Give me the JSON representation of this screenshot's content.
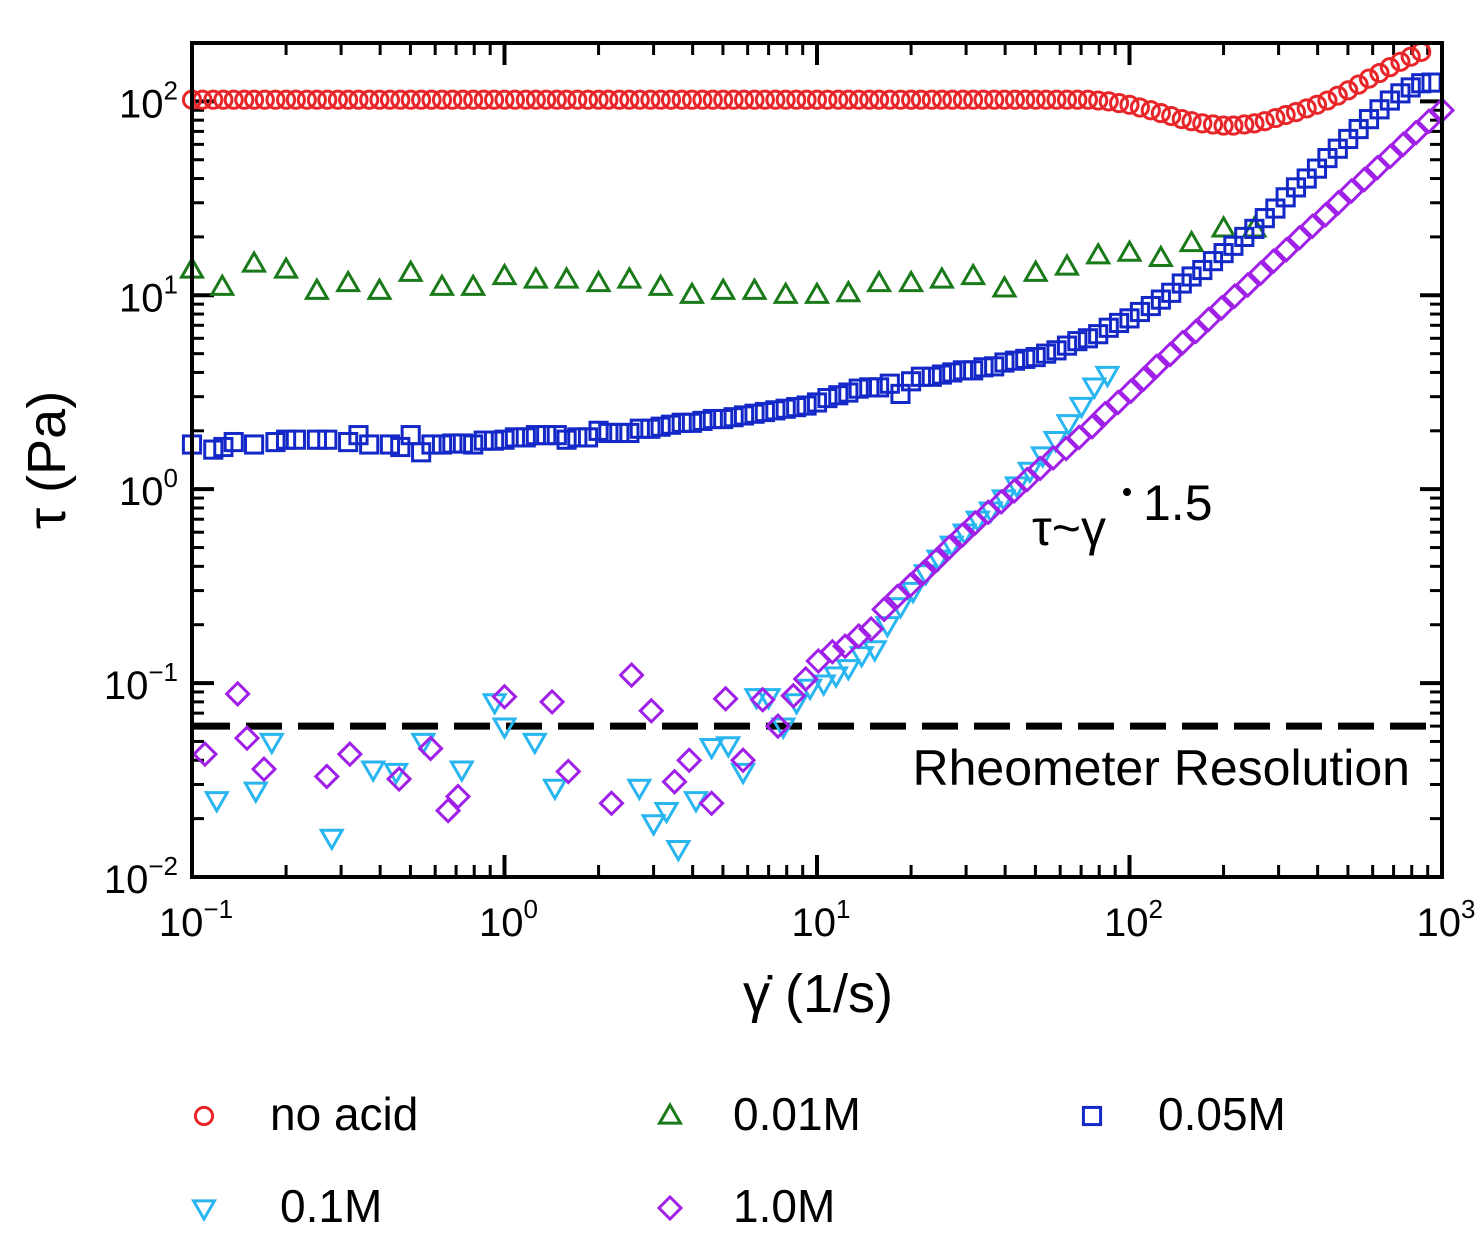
{
  "chart_data": {
    "type": "scatter",
    "xscale": "log",
    "yscale": "log",
    "xlim": [
      0.1,
      1000
    ],
    "ylim": [
      0.01,
      200
    ],
    "xlabel": "γ̇ (1/s)",
    "ylabel": "τ (Pa)",
    "x_ticks": [
      {
        "base": "10",
        "exp": "−1"
      },
      {
        "base": "10",
        "exp": "0"
      },
      {
        "base": "10",
        "exp": "1"
      },
      {
        "base": "10",
        "exp": "2"
      },
      {
        "base": "10",
        "exp": "3"
      }
    ],
    "y_ticks": [
      {
        "base": "10",
        "exp": "−2"
      },
      {
        "base": "10",
        "exp": "−1"
      },
      {
        "base": "10",
        "exp": "0"
      },
      {
        "base": "10",
        "exp": "1"
      },
      {
        "base": "10",
        "exp": "2"
      }
    ],
    "annotations": {
      "reference_line_label": "Rheometer Resolution",
      "reference_line_value": 0.06,
      "power_law_prefix": "τ~γ",
      "power_law_exponent": "1.5"
    },
    "series": [
      {
        "name": "no acid",
        "marker": "circle",
        "color": "#e8262a",
        "x": [
          0.1,
          0.108,
          0.117,
          0.126,
          0.136,
          0.147,
          0.158,
          0.171,
          0.185,
          0.2,
          0.215,
          0.233,
          0.251,
          0.271,
          0.293,
          0.316,
          0.341,
          0.369,
          0.398,
          0.43,
          0.464,
          0.501,
          0.541,
          0.584,
          0.631,
          0.681,
          0.736,
          0.794,
          0.858,
          0.926,
          1,
          1.08,
          1.17,
          1.26,
          1.36,
          1.47,
          1.58,
          1.71,
          1.85,
          2,
          2.15,
          2.33,
          2.51,
          2.71,
          2.93,
          3.16,
          3.41,
          3.69,
          3.98,
          4.3,
          4.64,
          5.01,
          5.41,
          5.84,
          6.31,
          6.81,
          7.36,
          7.94,
          8.58,
          9.26,
          10,
          10.8,
          11.7,
          12.6,
          13.6,
          14.7,
          15.8,
          17.1,
          18.5,
          20,
          21.5,
          23.3,
          25.1,
          27.1,
          29.3,
          31.6,
          34.1,
          36.9,
          39.8,
          43,
          46.4,
          50.1,
          54.1,
          58.4,
          63.1,
          68.1,
          73.6,
          79.4,
          85.8,
          92.6,
          100,
          108,
          117,
          126,
          136,
          147,
          158,
          171,
          185,
          200,
          215,
          233,
          251,
          271,
          293,
          316,
          341,
          369,
          398,
          430,
          464,
          501,
          541,
          584,
          631,
          681,
          736,
          794,
          858
        ],
        "y": [
          102,
          102,
          102,
          102,
          102,
          102,
          102,
          102,
          102,
          102,
          102,
          102,
          102,
          102,
          102,
          102,
          102,
          102,
          102,
          102,
          102,
          102,
          102,
          102,
          102,
          102,
          102,
          102,
          102,
          102,
          102,
          102,
          102,
          102,
          102,
          102,
          102,
          102,
          102,
          102,
          102,
          102,
          102,
          102,
          102,
          102,
          102,
          102,
          102,
          102,
          102,
          102,
          102,
          102,
          102,
          102,
          102,
          102,
          102,
          102,
          102,
          102,
          102,
          102,
          102,
          102,
          102,
          102,
          102,
          102,
          102,
          102,
          102,
          102,
          102,
          102,
          102,
          102,
          102,
          102,
          102,
          102,
          102,
          102,
          102,
          102,
          102,
          101,
          100,
          98,
          96,
          93,
          90,
          87,
          84,
          81,
          79,
          77,
          76,
          75,
          75,
          76,
          77,
          79,
          82,
          85,
          88,
          92,
          96,
          101,
          107,
          114,
          122,
          131,
          140,
          150,
          160,
          170,
          180
        ]
      },
      {
        "name": "0.01M",
        "marker": "triangle-up",
        "color": "#1a7a1a",
        "x": [
          0.1,
          0.125,
          0.158,
          0.2,
          0.251,
          0.316,
          0.398,
          0.501,
          0.631,
          0.794,
          1,
          1.26,
          1.58,
          2,
          2.51,
          3.16,
          3.98,
          5.01,
          6.31,
          7.94,
          10,
          12.6,
          15.8,
          20,
          25.1,
          31.6,
          39.8,
          50.1,
          63.1,
          79.4,
          100,
          126,
          158,
          200,
          251
        ],
        "y": [
          13.5,
          11,
          14.5,
          13.5,
          10.5,
          11.5,
          10.5,
          13,
          11,
          11,
          12.5,
          12,
          12,
          11.5,
          12,
          11,
          10,
          10.5,
          10.5,
          10,
          10,
          10.2,
          11.5,
          11.5,
          12,
          12.5,
          10.8,
          13,
          14,
          16,
          16.5,
          15.5,
          18.5,
          22,
          22
        ]
      },
      {
        "name": "0.05M",
        "marker": "square",
        "color": "#1428c8",
        "x": [
          0.1,
          0.117,
          0.126,
          0.136,
          0.158,
          0.185,
          0.2,
          0.215,
          0.251,
          0.271,
          0.316,
          0.341,
          0.369,
          0.43,
          0.464,
          0.501,
          0.541,
          0.584,
          0.631,
          0.681,
          0.736,
          0.794,
          0.858,
          0.926,
          1,
          1.08,
          1.17,
          1.26,
          1.36,
          1.47,
          1.58,
          1.71,
          1.85,
          2,
          2.15,
          2.33,
          2.51,
          2.71,
          2.93,
          3.16,
          3.41,
          3.69,
          3.98,
          4.3,
          4.64,
          5.01,
          5.41,
          5.84,
          6.31,
          6.81,
          7.36,
          7.94,
          8.58,
          9.26,
          10,
          10.8,
          11.7,
          12.6,
          13.6,
          14.7,
          15.8,
          17.1,
          18.5,
          20,
          21.5,
          23.3,
          25.1,
          27.1,
          29.3,
          31.6,
          34.1,
          36.9,
          39.8,
          43,
          46.4,
          50.1,
          54.1,
          58.4,
          63.1,
          68.1,
          73.6,
          79.4,
          85.8,
          92.6,
          100,
          108,
          117,
          126,
          136,
          147,
          158,
          171,
          185,
          200,
          215,
          233,
          251,
          271,
          293,
          316,
          341,
          369,
          398,
          430,
          464,
          501,
          541,
          584,
          631,
          681,
          736,
          794,
          858,
          926
        ],
        "y": [
          1.7,
          1.6,
          1.65,
          1.75,
          1.7,
          1.75,
          1.8,
          1.8,
          1.8,
          1.8,
          1.75,
          1.9,
          1.7,
          1.7,
          1.65,
          1.9,
          1.55,
          1.7,
          1.7,
          1.72,
          1.72,
          1.7,
          1.78,
          1.78,
          1.8,
          1.85,
          1.85,
          1.9,
          1.9,
          1.9,
          1.8,
          1.85,
          1.85,
          2,
          1.95,
          1.95,
          1.95,
          2.05,
          2.05,
          2.1,
          2.15,
          2.2,
          2.2,
          2.25,
          2.3,
          2.3,
          2.35,
          2.4,
          2.45,
          2.5,
          2.55,
          2.6,
          2.65,
          2.7,
          2.8,
          2.95,
          3.05,
          3.15,
          3.3,
          3.35,
          3.35,
          3.5,
          3.1,
          3.6,
          3.8,
          3.8,
          3.9,
          4,
          4.1,
          4.1,
          4.25,
          4.3,
          4.5,
          4.6,
          4.7,
          4.8,
          5,
          5.2,
          5.5,
          5.8,
          6,
          6.3,
          6.8,
          7.2,
          7.6,
          8.2,
          8.8,
          9.5,
          10.3,
          11.5,
          12.5,
          13.5,
          15,
          16.5,
          18,
          20,
          22,
          25,
          28,
          32,
          36,
          40,
          45,
          51,
          57,
          64,
          72,
          81,
          91,
          101,
          110,
          118,
          124,
          125
        ]
      },
      {
        "name": "0.1M",
        "marker": "triangle-down",
        "color": "#29b6f0",
        "x": [
          0.12,
          0.16,
          0.18,
          0.28,
          0.38,
          0.45,
          0.55,
          0.73,
          0.93,
          1,
          1.25,
          1.45,
          2.7,
          3,
          3.3,
          3.6,
          4.1,
          4.6,
          5.2,
          5.8,
          6.4,
          7,
          7.8,
          8.6,
          9.5,
          10.5,
          11.5,
          12.6,
          13.9,
          15.3,
          16.8,
          18.5,
          20.3,
          22.3,
          24.5,
          27,
          29.7,
          32.7,
          36,
          39.6,
          43.6,
          48,
          52.8,
          58,
          63.8,
          70.2,
          77.2,
          85
        ],
        "y": [
          0.025,
          0.028,
          0.05,
          0.016,
          0.036,
          0.035,
          0.05,
          0.036,
          0.08,
          0.06,
          0.05,
          0.029,
          0.029,
          0.019,
          0.022,
          0.014,
          0.025,
          0.047,
          0.048,
          0.035,
          0.085,
          0.085,
          0.06,
          0.08,
          0.095,
          0.1,
          0.11,
          0.12,
          0.14,
          0.15,
          0.2,
          0.25,
          0.3,
          0.37,
          0.44,
          0.52,
          0.6,
          0.7,
          0.78,
          0.9,
          1.05,
          1.25,
          1.5,
          1.8,
          2.2,
          2.7,
          3.4,
          3.9
        ]
      },
      {
        "name": "1.0M",
        "marker": "diamond",
        "color": "#a020e8",
        "x": [
          0.11,
          0.14,
          0.15,
          0.17,
          0.27,
          0.32,
          0.46,
          0.58,
          0.66,
          0.71,
          1,
          1.42,
          1.6,
          2.2,
          2.55,
          2.95,
          3.5,
          3.9,
          4.6,
          5.1,
          5.8,
          6.7,
          7.5,
          8.4,
          9.2,
          10.1,
          11.2,
          12.3,
          13.6,
          14.9,
          16.4,
          18.1,
          19.9,
          21.9,
          24.1,
          26.5,
          29.2,
          32.1,
          35.3,
          38.9,
          42.8,
          47,
          51.8,
          57,
          62.7,
          69,
          75.9,
          83.5,
          91.9,
          101,
          111,
          122,
          135,
          148,
          163,
          179,
          197,
          217,
          239,
          263,
          289,
          318,
          350,
          385,
          424,
          466,
          513,
          564,
          621,
          683,
          751,
          826,
          908,
          1000
        ],
        "y": [
          0.043,
          0.088,
          0.052,
          0.036,
          0.033,
          0.043,
          0.032,
          0.046,
          0.022,
          0.026,
          0.085,
          0.08,
          0.035,
          0.024,
          0.11,
          0.072,
          0.031,
          0.04,
          0.024,
          0.083,
          0.04,
          0.082,
          0.06,
          0.086,
          0.105,
          0.13,
          0.145,
          0.155,
          0.175,
          0.19,
          0.24,
          0.28,
          0.32,
          0.37,
          0.43,
          0.5,
          0.58,
          0.67,
          0.76,
          0.86,
          0.98,
          1.12,
          1.28,
          1.45,
          1.62,
          1.85,
          2.1,
          2.45,
          2.8,
          3.2,
          3.7,
          4.3,
          4.95,
          5.7,
          6.5,
          7.5,
          8.6,
          9.9,
          11.3,
          13,
          15,
          17.2,
          19.8,
          22.7,
          26,
          30,
          34.5,
          39.5,
          45.5,
          52,
          60,
          69,
          79,
          90
        ]
      }
    ]
  }
}
